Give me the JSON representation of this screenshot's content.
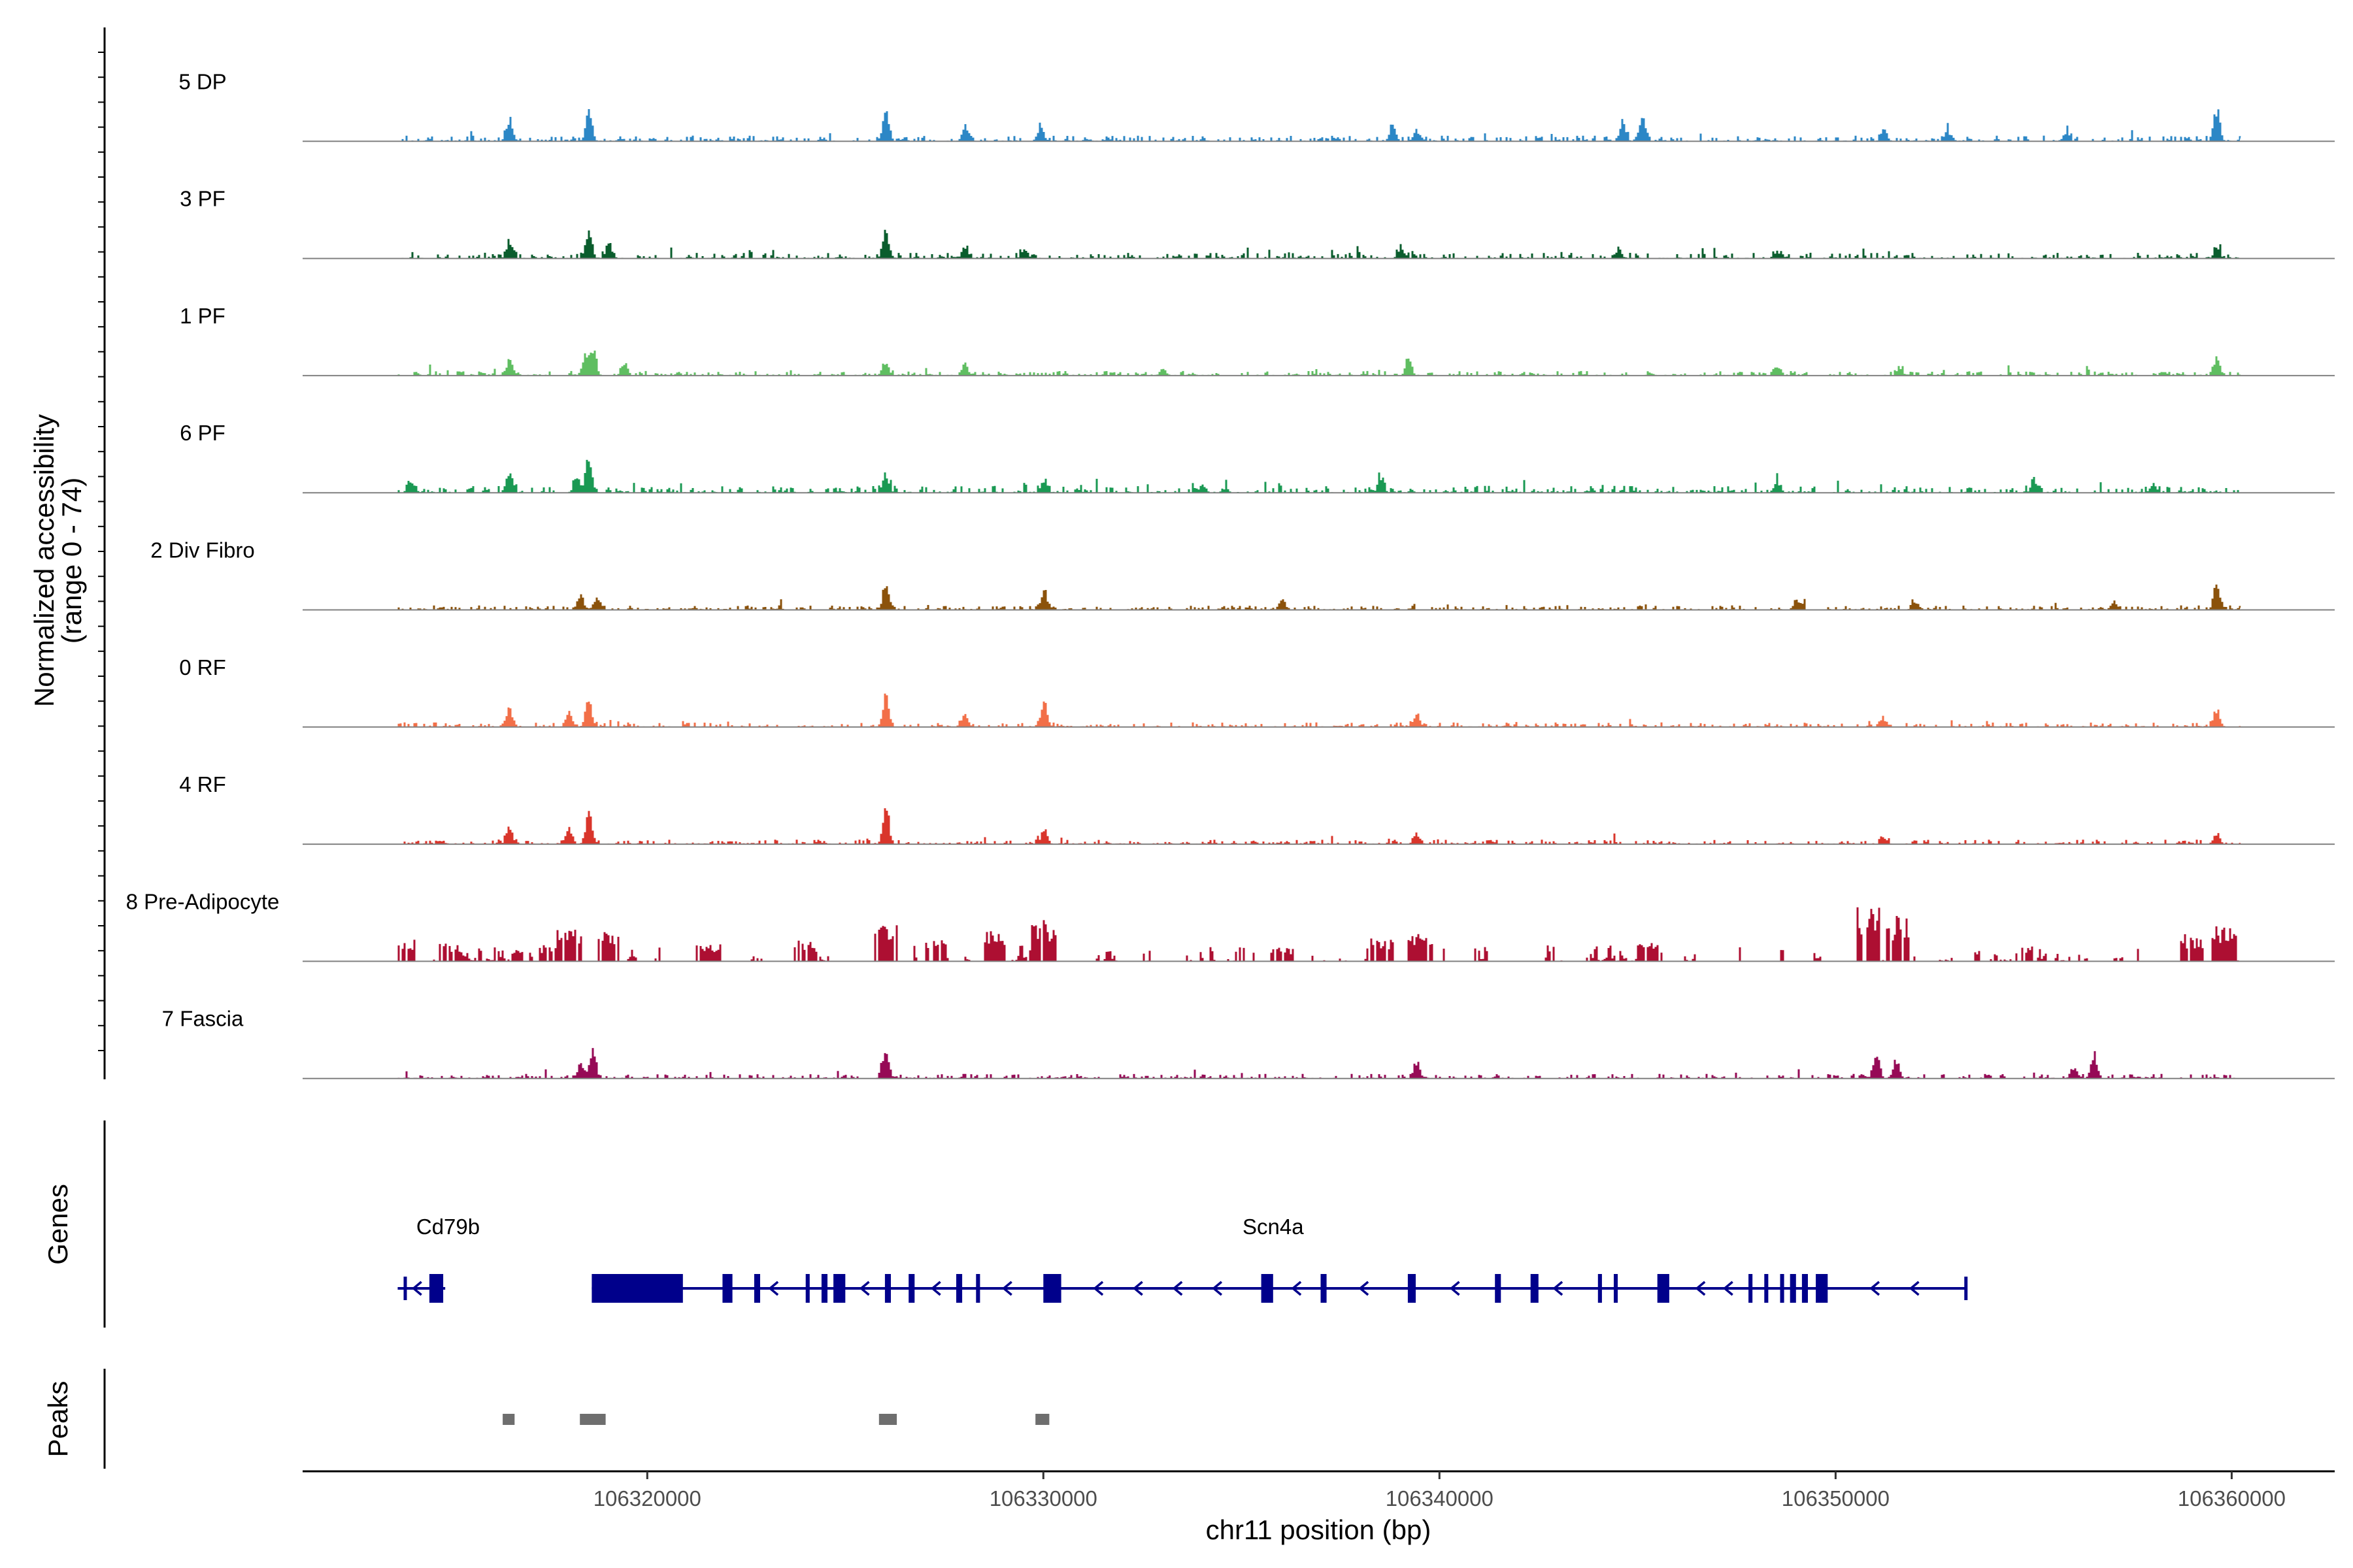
{
  "chart_data": {
    "type": "area",
    "title": "",
    "ylabel_line1": "Normalized accessibility",
    "ylabel_line2": "(range 0 - 74)",
    "y_range": [
      0,
      74
    ],
    "xlabel": "chr11 position (bp)",
    "x_range": [
      106311300,
      106362600
    ],
    "region_start": 106313700,
    "region_end": 106360200,
    "x_ticks": [
      106320000,
      106330000,
      106340000,
      106350000,
      106360000
    ],
    "x_tick_labels": [
      "106320000",
      "106330000",
      "106340000",
      "106350000",
      "106360000"
    ],
    "tracks": [
      {
        "name": "5 DP",
        "color": "#2c87c6",
        "seed": 11,
        "sparse": false,
        "bg": 5,
        "peaks": [
          [
            106316500,
            19
          ],
          [
            106318500,
            26
          ],
          [
            106326000,
            28
          ],
          [
            106328000,
            14
          ],
          [
            106329900,
            12
          ],
          [
            106338800,
            13
          ],
          [
            106339400,
            10
          ],
          [
            106344600,
            15
          ],
          [
            106345100,
            22
          ],
          [
            106351200,
            10
          ],
          [
            106352800,
            9
          ],
          [
            106355800,
            8
          ],
          [
            106359600,
            28
          ]
        ]
      },
      {
        "name": "3 PF",
        "color": "#0a5d2d",
        "seed": 23,
        "sparse": false,
        "bg": 5,
        "peaks": [
          [
            106316500,
            14
          ],
          [
            106318500,
            24
          ],
          [
            106319000,
            11
          ],
          [
            106326000,
            26
          ],
          [
            106328000,
            10
          ],
          [
            106329500,
            9
          ],
          [
            106339000,
            8
          ],
          [
            106344500,
            8
          ],
          [
            106348500,
            6
          ],
          [
            106359600,
            9
          ]
        ]
      },
      {
        "name": "1 PF",
        "color": "#5fbe61",
        "seed": 37,
        "sparse": false,
        "bg": 4,
        "peaks": [
          [
            106316500,
            14
          ],
          [
            106318400,
            16
          ],
          [
            106318600,
            24
          ],
          [
            106319400,
            11
          ],
          [
            106326000,
            10
          ],
          [
            106328000,
            10
          ],
          [
            106333000,
            6
          ],
          [
            106339200,
            12
          ],
          [
            106348500,
            8
          ],
          [
            106351600,
            6
          ],
          [
            106359600,
            17
          ]
        ]
      },
      {
        "name": "6 PF",
        "color": "#1a9953",
        "seed": 49,
        "sparse": false,
        "bg": 6,
        "peaks": [
          [
            106314000,
            10
          ],
          [
            106316500,
            18
          ],
          [
            106318200,
            14
          ],
          [
            106318500,
            30
          ],
          [
            106326000,
            13
          ],
          [
            106330000,
            11
          ],
          [
            106334000,
            7
          ],
          [
            106338500,
            10
          ],
          [
            106348500,
            9
          ],
          [
            106355000,
            10
          ],
          [
            106358000,
            8
          ]
        ]
      },
      {
        "name": "2 Div Fibro",
        "color": "#8b520b",
        "seed": 61,
        "sparse": false,
        "bg": 4,
        "peaks": [
          [
            106318300,
            12
          ],
          [
            106318700,
            10
          ],
          [
            106326000,
            22
          ],
          [
            106330000,
            16
          ],
          [
            106336000,
            9
          ],
          [
            106349000,
            10
          ],
          [
            106352000,
            7
          ],
          [
            106357000,
            8
          ],
          [
            106359600,
            24
          ]
        ]
      },
      {
        "name": "0 RF",
        "color": "#f26f48",
        "seed": 73,
        "sparse": false,
        "bg": 4,
        "peaks": [
          [
            106316500,
            17
          ],
          [
            106318000,
            14
          ],
          [
            106318500,
            25
          ],
          [
            106326000,
            26
          ],
          [
            106328000,
            11
          ],
          [
            106330000,
            22
          ],
          [
            106339400,
            13
          ],
          [
            106351200,
            7
          ],
          [
            106359600,
            15
          ]
        ]
      },
      {
        "name": "4 RF",
        "color": "#d9352b",
        "seed": 89,
        "sparse": false,
        "bg": 4,
        "peaks": [
          [
            106316500,
            15
          ],
          [
            106318000,
            14
          ],
          [
            106318500,
            28
          ],
          [
            106326000,
            34
          ],
          [
            106330000,
            14
          ],
          [
            106339400,
            9
          ],
          [
            106351200,
            6
          ],
          [
            106359600,
            9
          ]
        ]
      },
      {
        "name": "8 Pre-Adipocyte",
        "color": "#ad0f32",
        "seed": 101,
        "sparse": true,
        "bg": 0,
        "peaks": [
          [
            106313800,
            20
          ],
          [
            106315000,
            16
          ],
          [
            106317500,
            14
          ],
          [
            106318000,
            33
          ],
          [
            106319000,
            26
          ],
          [
            106321500,
            15
          ],
          [
            106324000,
            18
          ],
          [
            106326000,
            34
          ],
          [
            106327200,
            24
          ],
          [
            106328800,
            28
          ],
          [
            106330000,
            36
          ],
          [
            106336000,
            12
          ],
          [
            106338500,
            20
          ],
          [
            106339500,
            26
          ],
          [
            106345300,
            16
          ],
          [
            106350800,
            50
          ],
          [
            106351500,
            40
          ],
          [
            106359000,
            24
          ],
          [
            106359800,
            32
          ]
        ]
      },
      {
        "name": "7 Fascia",
        "color": "#960a56",
        "seed": 113,
        "sparse": false,
        "bg": 4,
        "peaks": [
          [
            106318300,
            14
          ],
          [
            106318600,
            24
          ],
          [
            106326000,
            26
          ],
          [
            106339400,
            14
          ],
          [
            106351000,
            22
          ],
          [
            106351500,
            16
          ],
          [
            106356000,
            10
          ],
          [
            106356500,
            20
          ]
        ]
      }
    ],
    "genes_panel_label": "Genes",
    "peaks_panel_label": "Peaks",
    "genes": [
      {
        "name": "Cd79b",
        "start": 106313700,
        "end": 106314900,
        "exons": [
          [
            106313850,
            106313950,
            "thin"
          ],
          [
            106314500,
            106314850,
            "thick"
          ]
        ],
        "arrows": [
          106314100
        ]
      },
      {
        "name": "Scn4a",
        "start": 106318600,
        "end": 106353300,
        "exons": [
          [
            106318600,
            106320900,
            "thick"
          ],
          [
            106321900,
            106322150,
            "thick"
          ],
          [
            106322700,
            106322850,
            "thick"
          ],
          [
            106324000,
            106324100,
            "thick"
          ],
          [
            106324400,
            106324550,
            "thick"
          ],
          [
            106324700,
            106325000,
            "thick"
          ],
          [
            106326000,
            106326150,
            "thick"
          ],
          [
            106326600,
            106326750,
            "thick"
          ],
          [
            106327800,
            106327950,
            "thick"
          ],
          [
            106328300,
            106328400,
            "thick"
          ],
          [
            106330000,
            106330450,
            "thick"
          ],
          [
            106335500,
            106335800,
            "thick"
          ],
          [
            106337000,
            106337150,
            "thick"
          ],
          [
            106339200,
            106339400,
            "thick"
          ],
          [
            106341400,
            106341550,
            "thick"
          ],
          [
            106342300,
            106342500,
            "thick"
          ],
          [
            106344000,
            106344100,
            "thick"
          ],
          [
            106344400,
            106344500,
            "thick"
          ],
          [
            106345500,
            106345800,
            "thick"
          ],
          [
            106347800,
            106347900,
            "thick"
          ],
          [
            106348200,
            106348300,
            "thick"
          ],
          [
            106348600,
            106348700,
            "thick"
          ],
          [
            106348850,
            106349000,
            "thick"
          ],
          [
            106349150,
            106349300,
            "thick"
          ],
          [
            106349500,
            106349800,
            "thick"
          ],
          [
            106353250,
            106353350,
            "thin"
          ]
        ],
        "arrows": [
          106323100,
          106325400,
          106327200,
          106329000,
          106331300,
          106332300,
          106333300,
          106334300,
          106336300,
          106338000,
          106340300,
          106342900,
          106346500,
          106347200,
          106350900,
          106351900
        ]
      }
    ],
    "peaks": [
      [
        106316350,
        106316650
      ],
      [
        106318300,
        106318950
      ],
      [
        106325850,
        106326300
      ],
      [
        106329800,
        106330150
      ]
    ]
  }
}
